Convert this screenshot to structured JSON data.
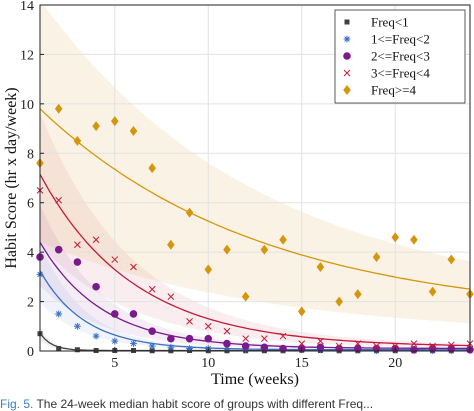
{
  "chart_data": {
    "type": "scatter",
    "xlabel": "Time (weeks)",
    "ylabel": "Habit Score (hr x day/week)",
    "xlim": [
      1,
      24
    ],
    "ylim": [
      0,
      14
    ],
    "xticks": [
      5,
      10,
      15,
      20
    ],
    "yticks": [
      0,
      2,
      4,
      6,
      8,
      10,
      12,
      14
    ],
    "grid": true,
    "legend_position": "top-right",
    "series": [
      {
        "name": "Freq<1",
        "marker": "square",
        "color": "#404040",
        "x": [
          1,
          2,
          3,
          4,
          5,
          6,
          7,
          8,
          9,
          10,
          11,
          12,
          13,
          14,
          15,
          16,
          17,
          18,
          19,
          20,
          21,
          22,
          23,
          24
        ],
        "y": [
          0.7,
          0.1,
          0.05,
          0.02,
          0.02,
          0.02,
          0.01,
          0.01,
          0.02,
          0.01,
          0.01,
          0.01,
          0.01,
          0.01,
          0.03,
          0.02,
          0.01,
          0.01,
          0.01,
          0.01,
          0.01,
          0.01,
          0.01,
          0.05
        ],
        "fit": {
          "a": 0.7,
          "k": 1.6,
          "c": 0.02
        }
      },
      {
        "name": "1<=Freq<2",
        "marker": "asterisk",
        "color": "#3b6fc4",
        "x": [
          1,
          2,
          3,
          4,
          5,
          6,
          7,
          8,
          9,
          10,
          11,
          12,
          13,
          14,
          15,
          16,
          17,
          18,
          19,
          20,
          21,
          22,
          23,
          24
        ],
        "y": [
          3.1,
          1.5,
          1.0,
          0.6,
          0.4,
          0.3,
          0.2,
          0.15,
          0.1,
          0.1,
          0.1,
          0.05,
          0.1,
          0.05,
          0.05,
          0.05,
          0.05,
          0.05,
          0.02,
          0.05,
          0.05,
          0.02,
          0.02,
          0.05
        ],
        "fit": {
          "a": 3.2,
          "k": 0.42,
          "c": 0.05
        }
      },
      {
        "name": "2<=Freq<3",
        "marker": "circle",
        "color": "#7a1a8c",
        "x": [
          1,
          2,
          3,
          4,
          5,
          6,
          7,
          8,
          9,
          10,
          11,
          12,
          13,
          14,
          15,
          16,
          17,
          18,
          19,
          20,
          21,
          22,
          23,
          24
        ],
        "y": [
          3.8,
          4.1,
          3.6,
          2.6,
          1.5,
          1.5,
          0.8,
          0.5,
          0.5,
          0.5,
          0.3,
          0.2,
          0.15,
          0.1,
          0.1,
          0.15,
          0.1,
          0.1,
          0.1,
          0.1,
          0.05,
          0.1,
          0.1,
          0.05
        ],
        "fit": {
          "a": 4.3,
          "k": 0.3,
          "c": 0.1
        }
      },
      {
        "name": "3<=Freq<4",
        "marker": "x",
        "color": "#c21a3a",
        "x": [
          1,
          2,
          3,
          4,
          5,
          6,
          7,
          8,
          9,
          10,
          11,
          12,
          13,
          14,
          15,
          16,
          17,
          18,
          19,
          20,
          21,
          22,
          23,
          24
        ],
        "y": [
          6.5,
          6.1,
          4.3,
          4.5,
          3.7,
          3.4,
          2.5,
          2.2,
          1.2,
          1.0,
          0.8,
          0.5,
          0.5,
          0.6,
          0.3,
          0.4,
          0.2,
          0.3,
          0.2,
          0.2,
          0.3,
          0.2,
          0.25,
          0.3
        ],
        "fit": {
          "a": 7.0,
          "k": 0.2,
          "c": 0.15
        }
      },
      {
        "name": "Freq>=4",
        "marker": "diamond",
        "color": "#d4960e",
        "x": [
          1,
          2,
          3,
          4,
          5,
          6,
          7,
          8,
          9,
          10,
          11,
          12,
          13,
          14,
          15,
          16,
          17,
          18,
          19,
          20,
          21,
          22,
          23,
          24
        ],
        "y": [
          7.6,
          9.8,
          8.5,
          9.1,
          9.3,
          8.9,
          7.4,
          4.3,
          5.6,
          3.3,
          4.1,
          2.2,
          4.1,
          4.5,
          1.6,
          3.4,
          2.0,
          2.3,
          3.8,
          4.6,
          4.5,
          2.4,
          3.7,
          2.3
        ],
        "fit": {
          "a": 8.5,
          "k": 0.085,
          "c": 1.3
        },
        "band": {
          "upper_scale": 1.45,
          "lower_scale": 0.45
        }
      }
    ]
  },
  "caption": {
    "fig_label": "Fig. 5.",
    "text": " The 24-week median habit score of groups with different Freq..."
  }
}
